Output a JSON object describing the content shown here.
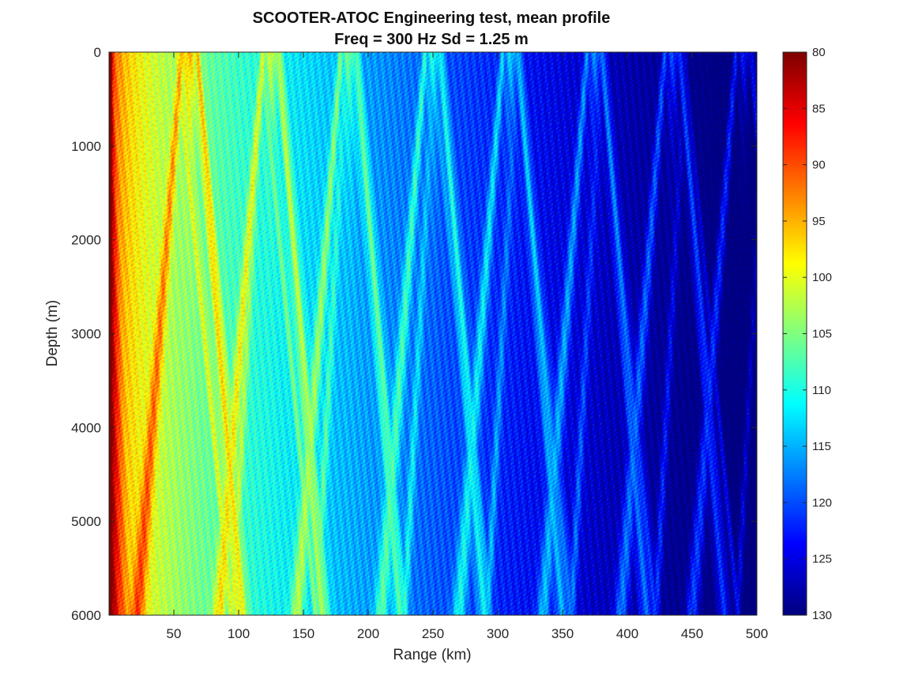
{
  "chart_data": {
    "type": "heatmap",
    "title_line1": "SCOOTER-ATOC Engineering test, mean profile",
    "title_line2": "Freq = 300 Hz    Sd = 1.25 m",
    "xlabel": "Range (km)",
    "ylabel": "Depth (m)",
    "xlim": [
      0,
      500
    ],
    "ylim": [
      0,
      6000
    ],
    "y_reversed": true,
    "xticks": [
      {
        "value": 50,
        "label": "50"
      },
      {
        "value": 100,
        "label": "100"
      },
      {
        "value": 150,
        "label": "150"
      },
      {
        "value": 200,
        "label": "200"
      },
      {
        "value": 250,
        "label": "250"
      },
      {
        "value": 300,
        "label": "300"
      },
      {
        "value": 350,
        "label": "350"
      },
      {
        "value": 400,
        "label": "400"
      },
      {
        "value": 450,
        "label": "450"
      },
      {
        "value": 500,
        "label": "500"
      }
    ],
    "yticks": [
      {
        "value": 0,
        "label": "0"
      },
      {
        "value": 1000,
        "label": "1000"
      },
      {
        "value": 2000,
        "label": "2000"
      },
      {
        "value": 3000,
        "label": "3000"
      },
      {
        "value": 4000,
        "label": "4000"
      },
      {
        "value": 5000,
        "label": "5000"
      },
      {
        "value": 6000,
        "label": "6000"
      }
    ],
    "colorbar": {
      "colormap": "jet",
      "range": [
        80,
        130
      ],
      "reversed": true,
      "ticks": [
        {
          "value": 80,
          "label": "80"
        },
        {
          "value": 85,
          "label": "85"
        },
        {
          "value": 90,
          "label": "90"
        },
        {
          "value": 95,
          "label": "95"
        },
        {
          "value": 100,
          "label": "100"
        },
        {
          "value": 105,
          "label": "105"
        },
        {
          "value": 110,
          "label": "110"
        },
        {
          "value": 115,
          "label": "115"
        },
        {
          "value": 120,
          "label": "120"
        },
        {
          "value": 125,
          "label": "125"
        },
        {
          "value": 130,
          "label": "130"
        }
      ]
    },
    "convergence_zone_ranges_km": [
      62,
      125,
      185,
      250,
      310,
      375,
      435,
      490
    ],
    "bottom_caustic_ranges_km": [
      95,
      160,
      228,
      292,
      357,
      422,
      485
    ]
  }
}
